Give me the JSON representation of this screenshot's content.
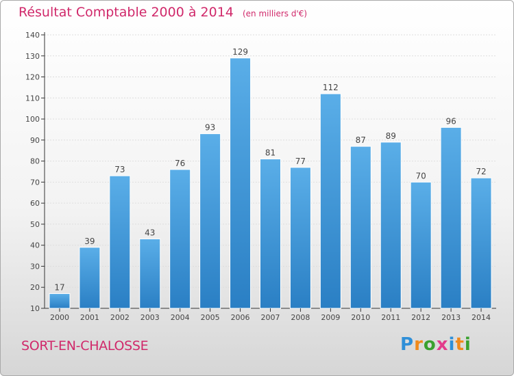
{
  "header": {
    "title": "Résultat Comptable 2000 à 2014",
    "subtitle": "(en milliers d'€)"
  },
  "footer": {
    "place": "SORT-EN-CHALOSSE",
    "logo": {
      "text": "Proxiti",
      "letter_colors": [
        "#2f8fd8",
        "#f08a1c",
        "#3aa12f",
        "#e23c8b",
        "#2f8fd8",
        "#f08a1c",
        "#3aa12f"
      ]
    }
  },
  "colors": {
    "title": "#d0286a",
    "bar_light": "#5aaee8",
    "bar_dark": "#2a7fc4",
    "axis": "#333333",
    "grid": "#dddddd"
  },
  "chart_data": {
    "type": "bar",
    "categories": [
      "2000",
      "2001",
      "2002",
      "2003",
      "2004",
      "2005",
      "2006",
      "2007",
      "2008",
      "2009",
      "2010",
      "2011",
      "2012",
      "2013",
      "2014"
    ],
    "values": [
      17,
      39,
      73,
      43,
      76,
      93,
      129,
      81,
      77,
      112,
      87,
      89,
      70,
      96,
      72
    ],
    "data_labels": [
      "17",
      "39",
      "73",
      "43",
      "76",
      "93",
      "129",
      "81",
      "77",
      "112",
      "87",
      "89",
      "70",
      "96",
      "72"
    ],
    "yticks": [
      10,
      20,
      30,
      40,
      50,
      60,
      70,
      80,
      90,
      100,
      110,
      120,
      130,
      140
    ],
    "ylim": [
      10,
      140
    ],
    "grid": true,
    "xlabel": "",
    "ylabel": ""
  }
}
